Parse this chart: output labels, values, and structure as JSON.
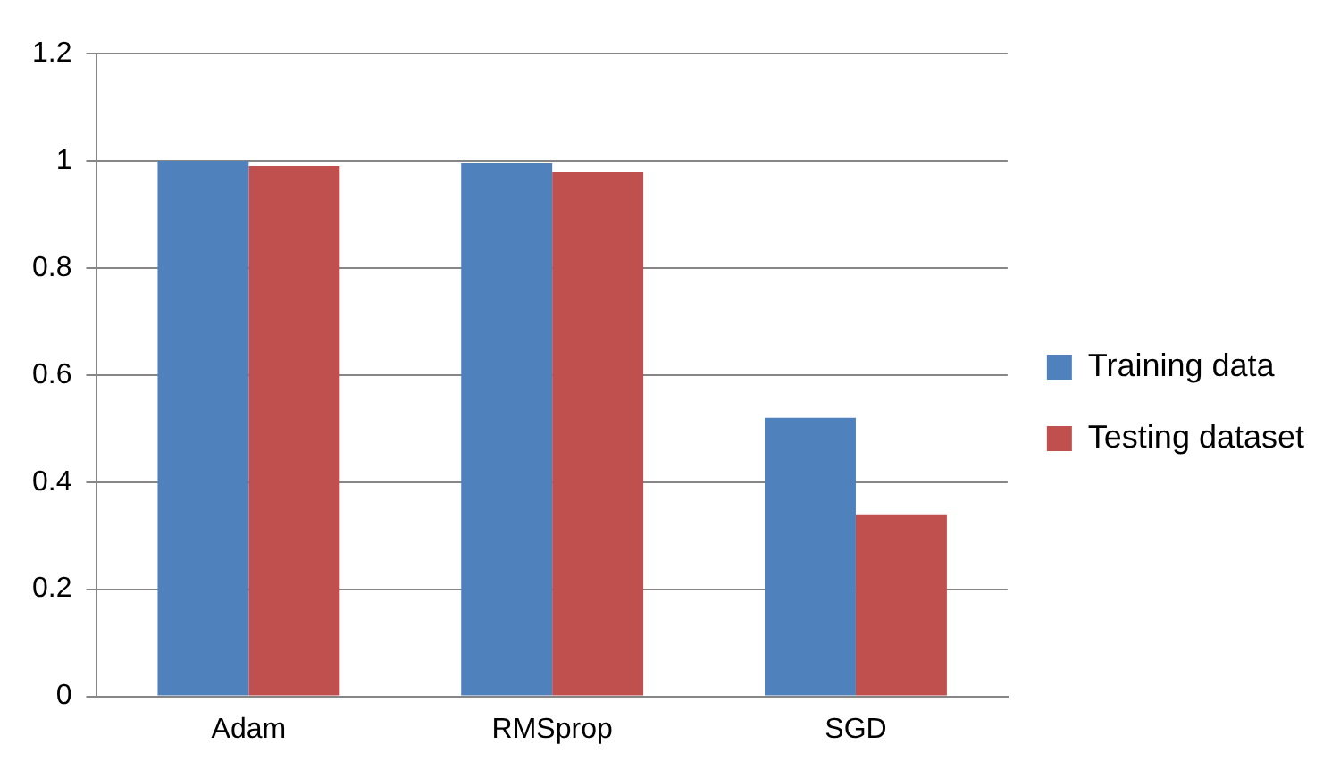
{
  "chart_data": {
    "type": "bar",
    "categories": [
      "Adam",
      "RMSprop",
      "SGD"
    ],
    "series": [
      {
        "name": "Training data",
        "color": "#4f81bd",
        "values": [
          1.0,
          0.995,
          0.52
        ]
      },
      {
        "name": "Testing dataset",
        "color": "#c0504d",
        "values": [
          0.99,
          0.98,
          0.34
        ]
      }
    ],
    "ylim": [
      0,
      1.2
    ],
    "yticks": [
      0,
      0.2,
      0.4,
      0.6,
      0.8,
      1,
      1.2
    ],
    "grid": "y",
    "legend": "right"
  }
}
